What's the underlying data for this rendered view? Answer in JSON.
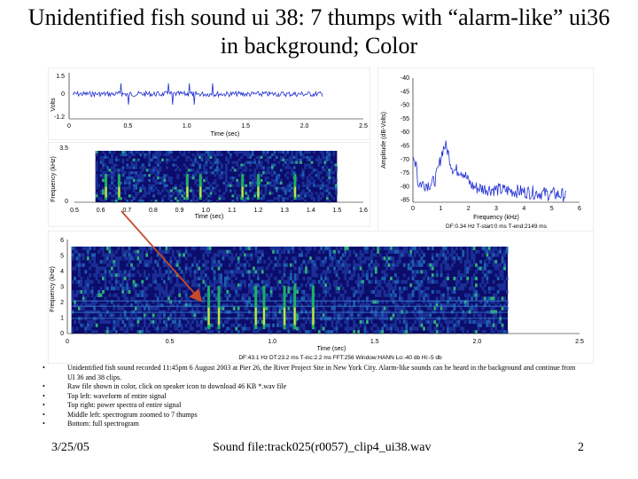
{
  "slide": {
    "title": "Unidentified fish sound ui 38: 7 thumps with “alarm-like” ui36 in background; Color",
    "bullets": [
      "Unidentified fish sound recorded 11:45pm 6 August 2003 at Pier 26, the River Project Site in New York City.  Alarm-like sounds can be heard in the background and continue from UI 36 and 38 clips.",
      "Raw file shown in color, click on speaker icon to download 46 KB *.wav file",
      "Top left: waveform of entire signal",
      "Top right: power spectra of entire signal",
      "Middle left: spectrogram zoomed to 7 thumps",
      "Bottom: full spectrogram"
    ],
    "footer": {
      "date": "3/25/05",
      "sound_file": "Sound file:track025(r0057)_clip4_ui38.wav",
      "page": "2"
    }
  },
  "colors": {
    "waveform": "#1f2fd0",
    "spectrum": "#1f2fd0",
    "arrow": "#c84a28",
    "spectro_bg": "#0c0c6a"
  },
  "waveform": {
    "ylabel": "Volts",
    "y_ticks": [
      "1.5",
      "0",
      "-1.2"
    ],
    "x_ticks": [
      "0",
      "0.5",
      "1.0",
      "1.5",
      "2.0",
      "2.5"
    ],
    "xlabel": "Time (sec)"
  },
  "spectrum": {
    "ylabel": "Amplitude (dB-Volts)",
    "y_ticks": [
      "-40",
      "-45",
      "-50",
      "-55",
      "-60",
      "-65",
      "-70",
      "-75",
      "-80",
      "-85"
    ],
    "x_ticks": [
      "0",
      "1",
      "2",
      "3",
      "4",
      "5",
      "6"
    ],
    "xlabel": "Frequency (kHz)",
    "info": "DF:0.34 Hz    T-start:0 ms    T-end:2149 ms"
  },
  "zoom_spectrogram": {
    "ylabel": "Frequency (kHz)",
    "y_ticks": [
      "3.5",
      "0"
    ],
    "x_ticks": [
      "0.5",
      "0.6",
      "0.7",
      "0.8",
      "0.9",
      "1.0",
      "1.1",
      "1.2",
      "1.3",
      "1.4",
      "1.5",
      "1.6"
    ],
    "xlabel": "Time (sec)",
    "thump_times": [
      0.62,
      0.67,
      0.93,
      0.98,
      1.14,
      1.2,
      1.34
    ]
  },
  "full_spectrogram": {
    "ylabel": "Frequency (kHz)",
    "y_ticks": [
      "6",
      "5",
      "4",
      "3",
      "2",
      "1",
      "0"
    ],
    "x_ticks": [
      "0",
      "0.5",
      "1.0",
      "1.5",
      "2.0",
      "2.5"
    ],
    "xlabel": "Time (sec)",
    "info": "DF:43.1 Hz    DT:23.2 ms    T-inc:2.2 ms    FFT:256    Window:HANN    Lo:-40 db    Hi:-5 db",
    "thump_times": [
      0.69,
      0.74,
      0.92,
      0.96,
      1.06,
      1.11,
      1.2
    ]
  }
}
